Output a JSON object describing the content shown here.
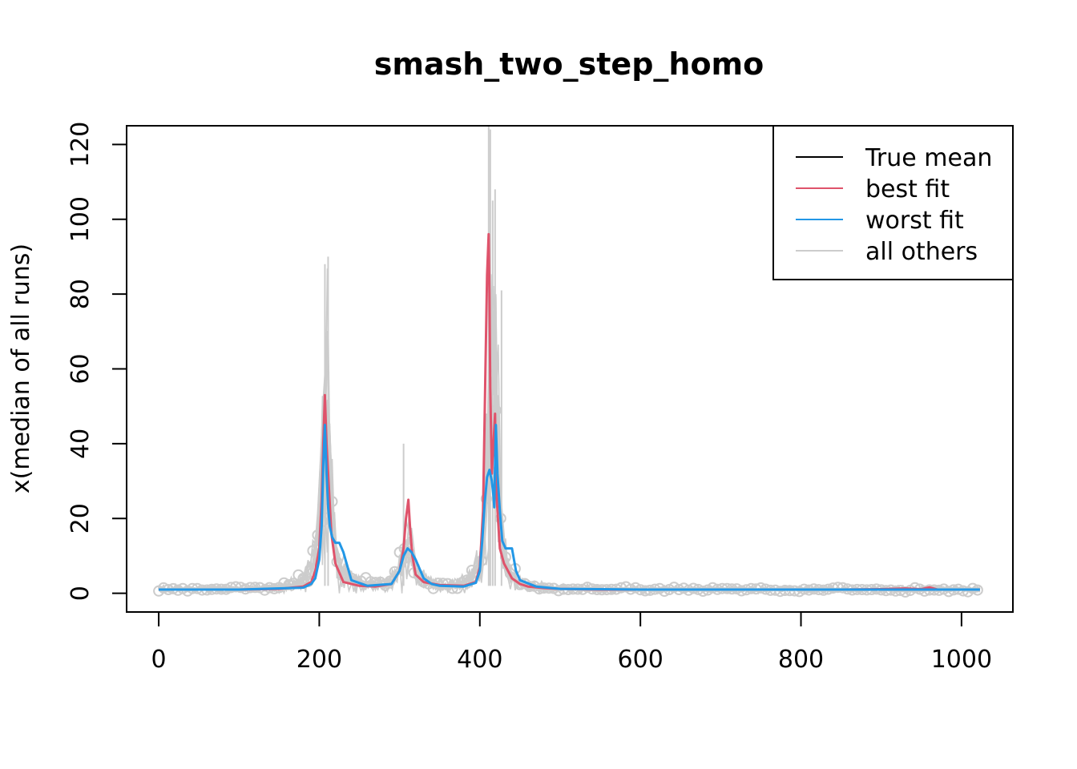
{
  "chart_data": {
    "type": "line",
    "title": "smash_two_step_homo",
    "xlabel": "",
    "ylabel": "x(median of all runs)",
    "xlim": [
      -40,
      1064
    ],
    "ylim": [
      -5,
      125
    ],
    "x_ticks": [
      0,
      200,
      400,
      600,
      800,
      1000
    ],
    "y_ticks": [
      0,
      20,
      40,
      60,
      80,
      100,
      120
    ],
    "grid": false,
    "legend_position": "top-right",
    "legend": [
      {
        "label": "True mean",
        "color": "#000000"
      },
      {
        "label": "best fit",
        "color": "#DF536B"
      },
      {
        "label": "worst fit",
        "color": "#2297E6"
      },
      {
        "label": "all others",
        "color": "#CCCCCC"
      }
    ],
    "peaks": [
      {
        "center": 208,
        "height": 45,
        "width": 7
      },
      {
        "center": 310,
        "height": 12,
        "width": 9
      },
      {
        "center": 413,
        "height": 35,
        "width": 6
      },
      {
        "center": 420,
        "height": 42,
        "width": 4
      }
    ],
    "series": [
      {
        "name": "best fit",
        "color": "#DF536B",
        "x": [
          0,
          100,
          150,
          180,
          190,
          195,
          200,
          203,
          205,
          207,
          209,
          212,
          215,
          220,
          230,
          250,
          270,
          290,
          300,
          305,
          308,
          311,
          313,
          316,
          320,
          330,
          350,
          380,
          395,
          400,
          404,
          407,
          409,
          411,
          412,
          413,
          415,
          417,
          419,
          420,
          422,
          425,
          430,
          440,
          450,
          460,
          480,
          500,
          550,
          600,
          700,
          800,
          850,
          900,
          930,
          950,
          960,
          970,
          1000,
          1023
        ],
        "y": [
          1.0,
          1.0,
          1.2,
          1.8,
          3.0,
          6.0,
          12.0,
          25.0,
          40.0,
          53.0,
          40.0,
          28.0,
          16.0,
          8.0,
          3.0,
          2.0,
          1.8,
          2.5,
          6.0,
          12.0,
          20.0,
          25.0,
          18.0,
          10.0,
          5.0,
          3.0,
          2.2,
          2.0,
          3.0,
          7.0,
          22.0,
          60.0,
          85.0,
          96.0,
          80.0,
          55.0,
          32.0,
          40.0,
          48.0,
          30.0,
          22.0,
          12.0,
          8.0,
          4.0,
          2.5,
          1.8,
          1.4,
          1.2,
          1.0,
          1.0,
          1.0,
          1.0,
          1.0,
          1.1,
          1.3,
          1.1,
          1.6,
          1.0,
          1.0,
          1.0
        ]
      },
      {
        "name": "worst fit",
        "color": "#2297E6",
        "x": [
          0,
          100,
          180,
          190,
          195,
          200,
          203,
          205,
          207,
          209,
          211,
          213,
          216,
          220,
          225,
          230,
          240,
          260,
          290,
          300,
          305,
          310,
          315,
          320,
          330,
          340,
          350,
          380,
          395,
          400,
          403,
          406,
          409,
          412,
          415,
          417,
          418,
          419,
          420,
          422,
          425,
          428,
          432,
          436,
          440,
          445,
          450,
          470,
          500,
          600,
          700,
          800,
          900,
          1023
        ],
        "y": [
          1.0,
          1.0,
          1.5,
          2.5,
          4.0,
          9.0,
          18.0,
          34.0,
          45.0,
          32.0,
          23.0,
          18.0,
          15.0,
          13.5,
          13.5,
          11.0,
          3.5,
          2.0,
          2.5,
          6.0,
          10.0,
          12.0,
          11.0,
          9.0,
          4.0,
          2.5,
          2.0,
          1.8,
          2.8,
          6.0,
          14.0,
          24.0,
          31.0,
          33.0,
          30.0,
          26.0,
          23.0,
          35.0,
          45.0,
          32.0,
          22.0,
          14.0,
          12.0,
          12.0,
          12.0,
          6.0,
          3.5,
          1.8,
          1.2,
          1.0,
          1.0,
          1.0,
          1.0,
          1.0
        ]
      }
    ]
  }
}
